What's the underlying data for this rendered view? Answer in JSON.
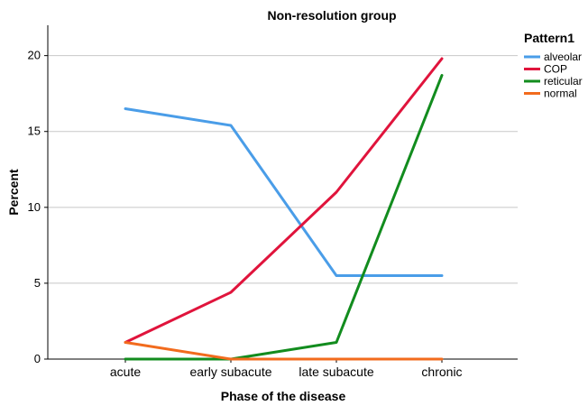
{
  "chart_data": {
    "type": "line",
    "title": "Non-resolution group",
    "xlabel": "Phase of the disease",
    "ylabel": "Percent",
    "categories": [
      "acute",
      "early subacute",
      "late subacute",
      "chronic"
    ],
    "ylim": [
      0,
      22
    ],
    "yticks": [
      0,
      5,
      10,
      15,
      20
    ],
    "grid": true,
    "legend_title": "Pattern1",
    "legend_position": "top-right",
    "series": [
      {
        "name": "alveolar",
        "color": "#4a9de8",
        "values": [
          16.5,
          15.4,
          5.5,
          5.5
        ]
      },
      {
        "name": "COP",
        "color": "#e0143c",
        "values": [
          1.1,
          4.4,
          11.0,
          19.8
        ]
      },
      {
        "name": "reticular",
        "color": "#128c1e",
        "values": [
          0,
          0,
          1.1,
          18.7
        ]
      },
      {
        "name": "normal",
        "color": "#f26b1d",
        "values": [
          1.1,
          0,
          0,
          0
        ]
      }
    ]
  }
}
